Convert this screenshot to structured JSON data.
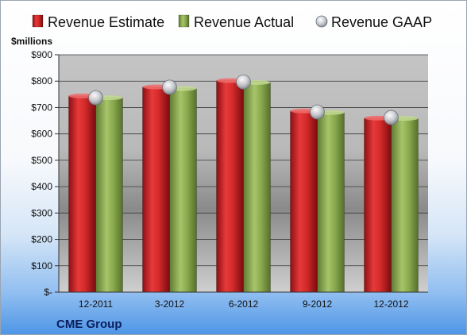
{
  "chart_data": {
    "type": "bar",
    "unit_label": "$millions",
    "company": "CME Group",
    "categories": [
      "12-2011",
      "3-2012",
      "6-2012",
      "9-2012",
      "12-2012"
    ],
    "series": [
      {
        "name": "Revenue Estimate",
        "kind": "bar",
        "color": "#d42a2a",
        "values": [
          744,
          778,
          802,
          687,
          660
        ]
      },
      {
        "name": "Revenue Actual",
        "kind": "bar",
        "color": "#8aaa4e",
        "values": [
          737,
          772,
          795,
          681,
          659
        ]
      },
      {
        "name": "Revenue GAAP",
        "kind": "marker",
        "color": "#c9cdd3",
        "values": [
          737,
          777,
          797,
          683,
          662
        ]
      }
    ],
    "ylim": [
      0,
      900
    ],
    "yticks": [
      0,
      100,
      200,
      300,
      400,
      500,
      600,
      700,
      800,
      900
    ],
    "ytick_labels": [
      "$-",
      "$100",
      "$200",
      "$300",
      "$400",
      "$500",
      "$600",
      "$700",
      "$800",
      "$900"
    ],
    "grid": true,
    "legend_position": "top"
  }
}
